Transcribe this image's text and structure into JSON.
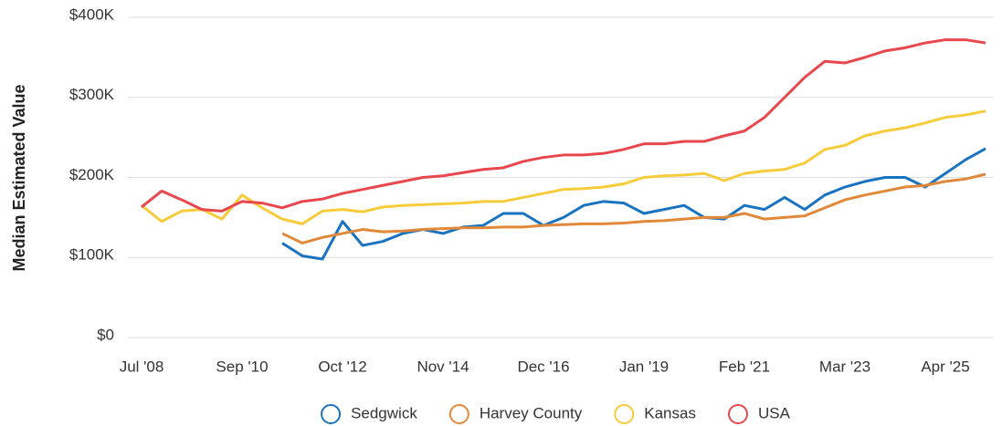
{
  "chart_data": {
    "type": "line",
    "y_label": "Median Estimated Value",
    "categories": [
      "Jul '08",
      null,
      null,
      null,
      null,
      "Sep '10",
      null,
      null,
      null,
      null,
      "Oct '12",
      null,
      null,
      null,
      null,
      "Nov '14",
      null,
      null,
      null,
      null,
      "Dec '16",
      null,
      null,
      null,
      null,
      "Jan '19",
      null,
      null,
      null,
      null,
      "Feb '21",
      null,
      null,
      null,
      null,
      "Mar '23",
      null,
      null,
      null,
      null,
      "Apr '25",
      null,
      null
    ],
    "series": [
      {
        "name": "Sedgwick",
        "color": "#1a73c0",
        "values": [
          null,
          null,
          null,
          null,
          null,
          null,
          null,
          118000,
          102000,
          98000,
          145000,
          115000,
          120000,
          130000,
          135000,
          130000,
          138000,
          140000,
          155000,
          155000,
          140000,
          150000,
          165000,
          170000,
          168000,
          155000,
          160000,
          165000,
          150000,
          148000,
          165000,
          160000,
          175000,
          160000,
          178000,
          188000,
          195000,
          200000,
          200000,
          188000,
          205000,
          222000,
          236000
        ]
      },
      {
        "name": "Harvey County",
        "color": "#e0893b",
        "values": [
          null,
          null,
          null,
          null,
          null,
          null,
          null,
          130000,
          118000,
          125000,
          130000,
          135000,
          132000,
          133000,
          135000,
          136000,
          137000,
          137000,
          138000,
          138000,
          140000,
          141000,
          142000,
          142000,
          143000,
          145000,
          146000,
          148000,
          150000,
          150000,
          155000,
          148000,
          150000,
          152000,
          162000,
          172000,
          178000,
          183000,
          188000,
          190000,
          195000,
          198000,
          204000
        ]
      },
      {
        "name": "Kansas",
        "color": "#f7cc3b",
        "values": [
          165000,
          145000,
          158000,
          160000,
          148000,
          178000,
          162000,
          148000,
          142000,
          158000,
          160000,
          157000,
          163000,
          165000,
          166000,
          167000,
          168000,
          170000,
          170000,
          175000,
          180000,
          185000,
          186000,
          188000,
          192000,
          200000,
          202000,
          203000,
          205000,
          196000,
          205000,
          208000,
          210000,
          218000,
          235000,
          240000,
          252000,
          258000,
          262000,
          268000,
          275000,
          278000,
          283000
        ]
      },
      {
        "name": "USA",
        "color": "#e8474d",
        "values": [
          163000,
          183000,
          172000,
          160000,
          158000,
          170000,
          168000,
          162000,
          170000,
          173000,
          180000,
          185000,
          190000,
          195000,
          200000,
          202000,
          206000,
          210000,
          212000,
          220000,
          225000,
          228000,
          228000,
          230000,
          235000,
          242000,
          242000,
          245000,
          245000,
          252000,
          258000,
          275000,
          300000,
          325000,
          345000,
          343000,
          350000,
          358000,
          362000,
          368000,
          372000,
          372000,
          368000
        ]
      }
    ],
    "ylim": [
      0,
      400000
    ],
    "yticks": [
      {
        "value": 0,
        "label": "$0"
      },
      {
        "value": 100000,
        "label": "$100K"
      },
      {
        "value": 200000,
        "label": "$200K"
      },
      {
        "value": 300000,
        "label": "$300K"
      },
      {
        "value": 400000,
        "label": "$400K"
      }
    ],
    "grid": true
  }
}
